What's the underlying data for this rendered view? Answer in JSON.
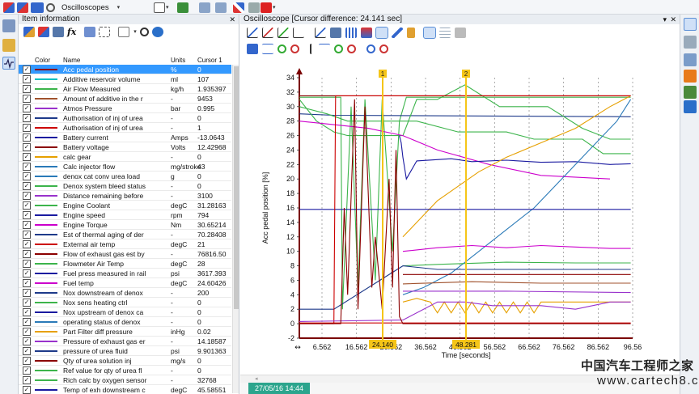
{
  "toolbar": {
    "menu_oscilloscopes": "Oscilloscopes",
    "menu_oscilloscopes_arrow": "▾",
    "menu_small_arrow": "▾"
  },
  "item_panel": {
    "title": "Item information",
    "close": "✕",
    "columns": {
      "color": "Color",
      "name": "Name",
      "units": "Units",
      "cursor": "Cursor 1"
    },
    "rows": [
      {
        "name": "Acc pedal position",
        "unit": "%",
        "value": "0",
        "color": "#8b0000",
        "selected": true
      },
      {
        "name": "Additive reservoir volume",
        "unit": "ml",
        "value": "107",
        "color": "#00c0c0"
      },
      {
        "name": "Air Flow Measured",
        "unit": "kg/h",
        "value": "1.935397",
        "color": "#3cb44b"
      },
      {
        "name": "Amount of additive in the r",
        "unit": "-",
        "value": "9453",
        "color": "#a0522d"
      },
      {
        "name": "Atmos Pressure",
        "unit": "bar",
        "value": "0.995",
        "color": "#9932cc"
      },
      {
        "name": "Authorisation of inj of urea",
        "unit": "-",
        "value": "0",
        "color": "#1e3a8a"
      },
      {
        "name": "Authorisation of inj of urea",
        "unit": "-",
        "value": "1",
        "color": "#cc0000"
      },
      {
        "name": "Battery current",
        "unit": "Amps",
        "value": "-13.0643",
        "color": "#1a1aa0"
      },
      {
        "name": "Battery voltage",
        "unit": "Volts",
        "value": "12.42968",
        "color": "#8b0000"
      },
      {
        "name": "calc gear",
        "unit": "-",
        "value": "0",
        "color": "#e6a000"
      },
      {
        "name": "Calc injector flow",
        "unit": "mg/stroke",
        "value": "43",
        "color": "#2a7ab8"
      },
      {
        "name": "denox cat conv urea load",
        "unit": "g",
        "value": "0",
        "color": "#2a7ab8"
      },
      {
        "name": "Denox system bleed status",
        "unit": "-",
        "value": "0",
        "color": "#3cb44b"
      },
      {
        "name": "Distance remaining before",
        "unit": "-",
        "value": "3100",
        "color": "#9932cc"
      },
      {
        "name": "Engine Coolant",
        "unit": "degC",
        "value": "31.28163",
        "color": "#3cb44b"
      },
      {
        "name": "Engine speed",
        "unit": "rpm",
        "value": "794",
        "color": "#1a1aa0"
      },
      {
        "name": "Engine Torque",
        "unit": "Nm",
        "value": "30.65214",
        "color": "#cc00cc"
      },
      {
        "name": "Est of thermal aging of der",
        "unit": "-",
        "value": "70.28408",
        "color": "#1e3a8a"
      },
      {
        "name": "External air temp",
        "unit": "degC",
        "value": "21",
        "color": "#cc0000"
      },
      {
        "name": "Flow of exhaust gas est by",
        "unit": "-",
        "value": "76816.50",
        "color": "#8b0000"
      },
      {
        "name": "Flowmeter Air Temp",
        "unit": "degC",
        "value": "28",
        "color": "#3cb44b"
      },
      {
        "name": "Fuel press measured in rail",
        "unit": "psi",
        "value": "3617.393",
        "color": "#1a1aa0"
      },
      {
        "name": "Fuel temp",
        "unit": "degC",
        "value": "24.60426",
        "color": "#cc00cc"
      },
      {
        "name": "Nox downstream of denox",
        "unit": "-",
        "value": "200",
        "color": "#1e3a8a"
      },
      {
        "name": "Nox sens heating ctrl",
        "unit": "-",
        "value": "0",
        "color": "#3cb44b"
      },
      {
        "name": "Nox upstream of denox ca",
        "unit": "-",
        "value": "0",
        "color": "#1a1aa0"
      },
      {
        "name": "operating status of denox",
        "unit": "-",
        "value": "0",
        "color": "#2a7ab8"
      },
      {
        "name": "Part Filter diff pressure",
        "unit": "inHg",
        "value": "0.02",
        "color": "#e6a000"
      },
      {
        "name": "Pressure of exhaust gas er",
        "unit": "-",
        "value": "14.18587",
        "color": "#9932cc"
      },
      {
        "name": "pressure of urea fluid",
        "unit": "psi",
        "value": "9.901363",
        "color": "#1e3a8a"
      },
      {
        "name": "Qty of urea solution inj",
        "unit": "mg/s",
        "value": "0",
        "color": "#8b0000"
      },
      {
        "name": "Ref value for qty of urea fl",
        "unit": "-",
        "value": "0",
        "color": "#3cb44b"
      },
      {
        "name": "Rich calc by oxygen sensor",
        "unit": "-",
        "value": "32768",
        "color": "#3cb44b"
      },
      {
        "name": "Temp of exh downstream c",
        "unit": "degC",
        "value": "45.58551",
        "color": "#1a1aa0"
      }
    ]
  },
  "osc_panel": {
    "title": "Oscilloscope [Cursor difference: 24.141 sec]",
    "close": "✕",
    "pin": "▾",
    "timestamp": "27/05/16 14:44",
    "scroll_left": "◂"
  },
  "chart_data": {
    "type": "line",
    "ylabel": "Acc pedal position [%]",
    "xlabel": "Time [seconds]",
    "ylim": [
      -2,
      34
    ],
    "yticks": [
      "-2",
      "0",
      "2",
      "4",
      "6",
      "8",
      "10",
      "12",
      "14",
      "16",
      "18",
      "20",
      "22",
      "24",
      "26",
      "28",
      "30",
      "32",
      "34"
    ],
    "xlim": [
      0,
      96.56
    ],
    "xticks": [
      "6.562",
      "16.562",
      "26.562",
      "36.562",
      "46.562",
      "56.562",
      "66.562",
      "76.562",
      "86.562",
      "96.56"
    ],
    "cursors": [
      {
        "label": "1",
        "x": 24.14,
        "value": "24.140"
      },
      {
        "label": "2",
        "x": 48.281,
        "value": "48.281"
      }
    ],
    "series": [
      {
        "color": "#8b0000",
        "points": [
          [
            0,
            31.5
          ],
          [
            10,
            31.5
          ],
          [
            96,
            31.5
          ]
        ]
      },
      {
        "color": "#3cb44b",
        "points": [
          [
            0,
            31.3
          ],
          [
            12,
            31.3
          ],
          [
            12.5,
            2
          ],
          [
            15,
            30
          ],
          [
            17,
            5
          ],
          [
            19,
            31
          ],
          [
            22,
            6
          ],
          [
            24,
            31
          ],
          [
            27,
            10
          ],
          [
            29,
            28
          ],
          [
            31,
            31.3
          ],
          [
            96,
            31.3
          ]
        ]
      },
      {
        "color": "#1e3a8a",
        "points": [
          [
            0,
            29
          ],
          [
            10,
            28.8
          ],
          [
            96,
            28.6
          ]
        ]
      },
      {
        "color": "#3cb44b",
        "points": [
          [
            0,
            31
          ],
          [
            5,
            28
          ],
          [
            10,
            26.5
          ],
          [
            14,
            26
          ],
          [
            30,
            26
          ],
          [
            34,
            31
          ],
          [
            40,
            31
          ],
          [
            48,
            33
          ],
          [
            58,
            30
          ],
          [
            72,
            30
          ],
          [
            82,
            27
          ],
          [
            90,
            25.5
          ],
          [
            96,
            25.5
          ]
        ]
      },
      {
        "color": "#cc00cc",
        "points": [
          [
            0,
            28
          ],
          [
            10,
            27.5
          ],
          [
            20,
            27
          ],
          [
            30,
            26
          ],
          [
            40,
            24
          ],
          [
            55,
            22
          ],
          [
            70,
            20.5
          ],
          [
            90,
            20
          ]
        ]
      },
      {
        "color": "#3cb44b",
        "points": [
          [
            0,
            30
          ],
          [
            8,
            29
          ],
          [
            14,
            28
          ],
          [
            34,
            28
          ],
          [
            46,
            26.5
          ],
          [
            60,
            26.5
          ],
          [
            68,
            25.5
          ],
          [
            82,
            25.5
          ],
          [
            88,
            23.5
          ],
          [
            96,
            23.5
          ]
        ]
      },
      {
        "color": "#1a1aa0",
        "points": [
          [
            29,
            26
          ],
          [
            29.5,
            25
          ],
          [
            30,
            23
          ],
          [
            31,
            20
          ],
          [
            34,
            22.5
          ],
          [
            44,
            22.8
          ],
          [
            50,
            22.4
          ],
          [
            60,
            22.6
          ],
          [
            70,
            22.3
          ],
          [
            80,
            22.4
          ],
          [
            90,
            22
          ],
          [
            96,
            22.1
          ]
        ]
      },
      {
        "color": "#e6a000",
        "points": [
          [
            30,
            12
          ],
          [
            34,
            14
          ],
          [
            40,
            17
          ],
          [
            46,
            19
          ],
          [
            52,
            21
          ],
          [
            60,
            23
          ],
          [
            70,
            25
          ],
          [
            80,
            27
          ],
          [
            90,
            30
          ],
          [
            96,
            31.5
          ]
        ]
      },
      {
        "color": "#2a7ab8",
        "points": [
          [
            30,
            4
          ],
          [
            36,
            5
          ],
          [
            44,
            7
          ],
          [
            52,
            10
          ],
          [
            60,
            13
          ],
          [
            68,
            16
          ],
          [
            76,
            20
          ],
          [
            84,
            24
          ],
          [
            92,
            28
          ],
          [
            96,
            31
          ]
        ]
      },
      {
        "color": "#1a1aa0",
        "points": [
          [
            0,
            15.8
          ],
          [
            96,
            15.8
          ]
        ]
      },
      {
        "color": "#cc00cc",
        "points": [
          [
            30,
            10
          ],
          [
            40,
            10.5
          ],
          [
            50,
            10.8
          ],
          [
            60,
            10.5
          ],
          [
            70,
            10.8
          ],
          [
            80,
            10.6
          ],
          [
            90,
            10.4
          ],
          [
            96,
            10.4
          ]
        ]
      },
      {
        "color": "#3cb44b",
        "points": [
          [
            30,
            8
          ],
          [
            40,
            8.2
          ],
          [
            60,
            8.5
          ],
          [
            80,
            8.4
          ],
          [
            96,
            8.4
          ]
        ]
      },
      {
        "color": "#1e3a8a",
        "points": [
          [
            0,
            2
          ],
          [
            10,
            2
          ],
          [
            30,
            8
          ],
          [
            40,
            7.5
          ],
          [
            60,
            7.5
          ],
          [
            80,
            7.5
          ],
          [
            96,
            7.5
          ]
        ]
      },
      {
        "color": "#8b0000",
        "points": [
          [
            30,
            6.8
          ],
          [
            96,
            6.8
          ]
        ]
      },
      {
        "color": "#a0522d",
        "points": [
          [
            30,
            5.5
          ],
          [
            50,
            5.8
          ],
          [
            70,
            5.6
          ],
          [
            96,
            5.6
          ]
        ]
      },
      {
        "color": "#9932cc",
        "points": [
          [
            30,
            4.5
          ],
          [
            60,
            4.5
          ],
          [
            96,
            4.3
          ]
        ]
      },
      {
        "color": "#cc0000",
        "points": [
          [
            0,
            0
          ],
          [
            10,
            0
          ],
          [
            10.5,
            31.5
          ],
          [
            96,
            31.5
          ]
        ]
      },
      {
        "color": "#e6a000",
        "points": [
          [
            30,
            3
          ],
          [
            34,
            3.5
          ],
          [
            38,
            3
          ],
          [
            40,
            1.5
          ],
          [
            42,
            3
          ],
          [
            44,
            1.5
          ],
          [
            46,
            3
          ],
          [
            48,
            1.5
          ],
          [
            50,
            3
          ],
          [
            52,
            1.5
          ],
          [
            54,
            3
          ],
          [
            56,
            1.5
          ],
          [
            58,
            3
          ],
          [
            60,
            1.5
          ],
          [
            62,
            3
          ],
          [
            64,
            1.5
          ],
          [
            66,
            3
          ],
          [
            68,
            1.5
          ],
          [
            70,
            3
          ],
          [
            96,
            3
          ]
        ]
      },
      {
        "color": "#9932cc",
        "points": [
          [
            0,
            0.3
          ],
          [
            30,
            0.5
          ],
          [
            40,
            3
          ],
          [
            48,
            3
          ],
          [
            56,
            2.5
          ],
          [
            70,
            2.5
          ],
          [
            80,
            2
          ],
          [
            90,
            3
          ],
          [
            96,
            3
          ]
        ]
      },
      {
        "color": "#cc0000",
        "points": [
          [
            0,
            0.1
          ],
          [
            96,
            0.1
          ]
        ]
      },
      {
        "color": "#8b0000",
        "points": [
          [
            0,
            0
          ],
          [
            12,
            0
          ],
          [
            13,
            16
          ],
          [
            14,
            4
          ],
          [
            16,
            31
          ],
          [
            17,
            2
          ],
          [
            19,
            30
          ],
          [
            21,
            5
          ],
          [
            22,
            12
          ],
          [
            24,
            2
          ],
          [
            26,
            20
          ],
          [
            27,
            5
          ],
          [
            28,
            24
          ],
          [
            29,
            1
          ],
          [
            30,
            0
          ],
          [
            96,
            0
          ]
        ]
      }
    ]
  }
}
